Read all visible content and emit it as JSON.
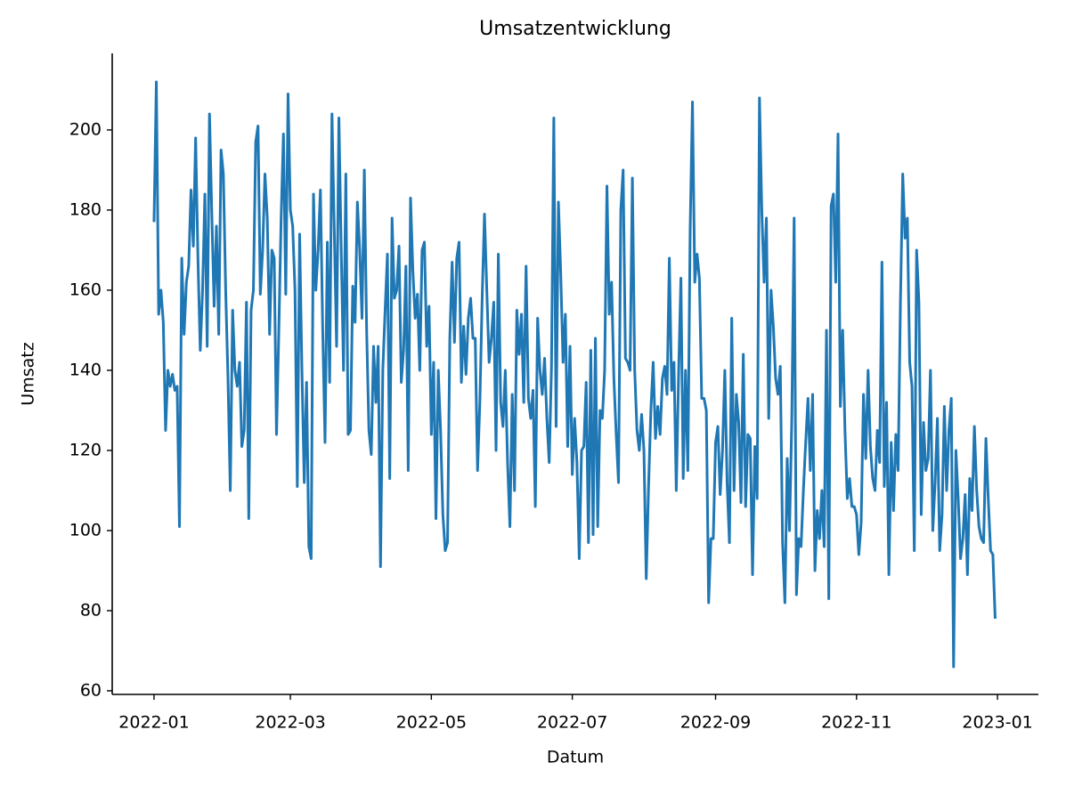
{
  "chart_data": {
    "type": "line",
    "title": "Umsatzentwicklung",
    "xlabel": "Datum",
    "ylabel": "Umsatz",
    "color": "#1f77b4",
    "x": [
      0,
      1,
      2,
      3,
      4,
      5,
      6,
      7,
      8,
      9,
      10,
      11,
      12,
      13,
      14,
      15,
      16,
      17,
      18,
      19,
      20,
      21,
      22,
      23,
      24,
      25,
      26,
      27,
      28,
      29,
      30,
      31,
      32,
      33,
      34,
      35,
      36,
      37,
      38,
      39,
      40,
      41,
      42,
      43,
      44,
      45,
      46,
      47,
      48,
      49,
      50,
      51,
      52,
      53,
      54,
      55,
      56,
      57,
      58,
      59,
      60,
      61,
      62,
      63,
      64,
      65,
      66,
      67,
      68,
      69,
      70,
      71,
      72,
      73,
      74,
      75,
      76,
      77,
      78,
      79,
      80,
      81,
      82,
      83,
      84,
      85,
      86,
      87,
      88,
      89,
      90,
      91,
      92,
      93,
      94,
      95,
      96,
      97,
      98,
      99,
      100,
      101,
      102,
      103,
      104,
      105,
      106,
      107,
      108,
      109,
      110,
      111,
      112,
      113,
      114,
      115,
      116,
      117,
      118,
      119,
      120,
      121,
      122,
      123,
      124,
      125,
      126,
      127,
      128,
      129,
      130,
      131,
      132,
      133,
      134,
      135,
      136,
      137,
      138,
      139,
      140,
      141,
      142,
      143,
      144,
      145,
      146,
      147,
      148,
      149,
      150,
      151,
      152,
      153,
      154,
      155,
      156,
      157,
      158,
      159,
      160,
      161,
      162,
      163,
      164,
      165,
      166,
      167,
      168,
      169,
      170,
      171,
      172,
      173,
      174,
      175,
      176,
      177,
      178,
      179,
      180,
      181,
      182,
      183,
      184,
      185,
      186,
      187,
      188,
      189,
      190,
      191,
      192,
      193,
      194,
      195,
      196,
      197,
      198,
      199,
      200,
      201,
      202,
      203,
      204,
      205,
      206,
      207,
      208,
      209,
      210,
      211,
      212,
      213,
      214,
      215,
      216,
      217,
      218,
      219,
      220,
      221,
      222,
      223,
      224,
      225,
      226,
      227,
      228,
      229,
      230,
      231,
      232,
      233,
      234,
      235,
      236,
      237,
      238,
      239,
      240,
      241,
      242,
      243,
      244,
      245,
      246,
      247,
      248,
      249,
      250,
      251,
      252,
      253,
      254,
      255,
      256,
      257,
      258,
      259,
      260,
      261,
      262,
      263,
      264,
      265,
      266,
      267,
      268,
      269,
      270,
      271,
      272,
      273,
      274,
      275,
      276,
      277,
      278,
      279,
      280,
      281,
      282,
      283,
      284,
      285,
      286,
      287,
      288,
      289,
      290,
      291,
      292,
      293,
      294,
      295,
      296,
      297,
      298,
      299,
      300,
      301,
      302,
      303,
      304,
      305,
      306,
      307,
      308,
      309,
      310,
      311,
      312,
      313,
      314,
      315,
      316,
      317,
      318,
      319,
      320,
      321,
      322,
      323,
      324,
      325,
      326,
      327,
      328,
      329,
      330,
      331,
      332,
      333,
      334,
      335,
      336,
      337,
      338,
      339,
      340,
      341,
      342,
      343,
      344,
      345,
      346,
      347,
      348,
      349,
      350,
      351,
      352,
      353,
      354,
      355,
      356,
      357,
      358,
      359,
      360,
      361,
      362,
      363,
      364
    ],
    "values": [
      177,
      212,
      154,
      160,
      152,
      125,
      140,
      136,
      139,
      135,
      136,
      101,
      168,
      149,
      162,
      166,
      185,
      171,
      198,
      168,
      145,
      160,
      184,
      146,
      204,
      179,
      156,
      176,
      149,
      195,
      189,
      160,
      138,
      110,
      155,
      140,
      136,
      142,
      121,
      125,
      157,
      103,
      155,
      160,
      197,
      201,
      159,
      170,
      189,
      178,
      149,
      170,
      168,
      124,
      150,
      178,
      199,
      159,
      209,
      180,
      176,
      160,
      111,
      174,
      140,
      112,
      137,
      96,
      93,
      184,
      160,
      170,
      185,
      150,
      122,
      172,
      137,
      204,
      175,
      146,
      203,
      170,
      140,
      189,
      124,
      125,
      161,
      152,
      182,
      170,
      153,
      190,
      150,
      125,
      119,
      146,
      132,
      146,
      91,
      140,
      155,
      169,
      113,
      178,
      158,
      160,
      171,
      137,
      145,
      166,
      115,
      183,
      165,
      153,
      159,
      140,
      170,
      172,
      146,
      156,
      124,
      142,
      103,
      140,
      125,
      104,
      95,
      97,
      148,
      167,
      147,
      168,
      172,
      137,
      151,
      139,
      153,
      158,
      148,
      148,
      115,
      132,
      158,
      179,
      160,
      142,
      148,
      157,
      120,
      169,
      132,
      126,
      140,
      117,
      101,
      134,
      110,
      155,
      144,
      154,
      132,
      166,
      133,
      128,
      135,
      106,
      153,
      140,
      134,
      143,
      128,
      117,
      141,
      203,
      126,
      182,
      164,
      142,
      154,
      121,
      146,
      114,
      128,
      117,
      93,
      120,
      121,
      137,
      97,
      145,
      99,
      148,
      101,
      130,
      128,
      140,
      186,
      154,
      162,
      138,
      124,
      112,
      180,
      190,
      143,
      142,
      140,
      188,
      140,
      125,
      120,
      129,
      120,
      88,
      111,
      130,
      142,
      123,
      131,
      124,
      138,
      141,
      134,
      168,
      135,
      142,
      110,
      139,
      163,
      113,
      140,
      115,
      175,
      207,
      162,
      169,
      163,
      133,
      133,
      130,
      82,
      98,
      98,
      122,
      126,
      109,
      120,
      140,
      112,
      97,
      153,
      110,
      134,
      127,
      107,
      144,
      106,
      124,
      123,
      89,
      121,
      108,
      208,
      180,
      162,
      178,
      128,
      160,
      151,
      138,
      134,
      141,
      97,
      82,
      118,
      100,
      128,
      178,
      84,
      98,
      96,
      110,
      122,
      133,
      115,
      134,
      90,
      105,
      98,
      110,
      96,
      150,
      83,
      181,
      184,
      162,
      199,
      131,
      150,
      125,
      108,
      113,
      106,
      106,
      104,
      94,
      102,
      134,
      118,
      140,
      121,
      113,
      110,
      125,
      117,
      167,
      111,
      132,
      89,
      122,
      105,
      124,
      115,
      157,
      189,
      173,
      178,
      142,
      136,
      95,
      170,
      157,
      104,
      127,
      115,
      118,
      140,
      100,
      112,
      128,
      95,
      104,
      131,
      110,
      125,
      133,
      66,
      120,
      108,
      93,
      98,
      109,
      89,
      113,
      105,
      126,
      110,
      101,
      98,
      97,
      123,
      108,
      95,
      94,
      78
    ],
    "xlim": [
      -18.1,
      382.7
    ],
    "xticks": [
      {
        "value": 0,
        "label": "2022-01"
      },
      {
        "value": 59,
        "label": "2022-03"
      },
      {
        "value": 120,
        "label": "2022-05"
      },
      {
        "value": 181,
        "label": "2022-07"
      },
      {
        "value": 243,
        "label": "2022-09"
      },
      {
        "value": 304,
        "label": "2022-11"
      },
      {
        "value": 365,
        "label": "2023-01"
      }
    ],
    "ylim": [
      59.1,
      219.1
    ],
    "yticks": [
      60,
      80,
      100,
      120,
      140,
      160,
      180,
      200
    ]
  }
}
